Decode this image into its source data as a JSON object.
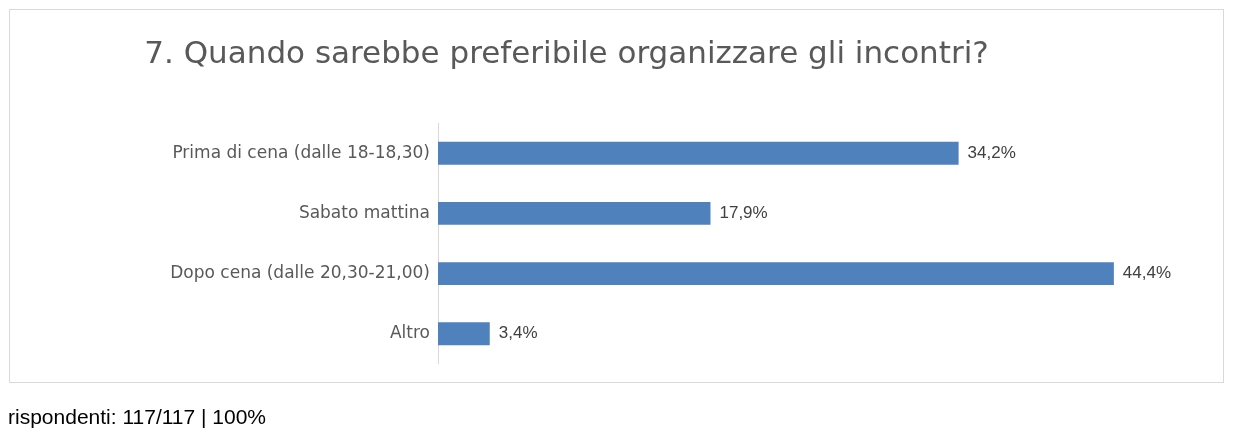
{
  "chart_data": {
    "type": "bar",
    "orientation": "horizontal",
    "title": "7. Quando sarebbe preferibile organizzare gli incontri?",
    "categories": [
      "Prima di cena (dalle 18-18,30)",
      "Sabato mattina",
      "Dopo cena (dalle 20,30-21,00)",
      "Altro"
    ],
    "values": [
      34.2,
      17.9,
      44.4,
      3.4
    ],
    "value_labels": [
      "34,2%",
      "17,9%",
      "44,4%",
      "3,4%"
    ],
    "color": "#4f81bd",
    "legend": false,
    "annotations": [
      "rispondenti: 117/117 | 100%"
    ]
  }
}
